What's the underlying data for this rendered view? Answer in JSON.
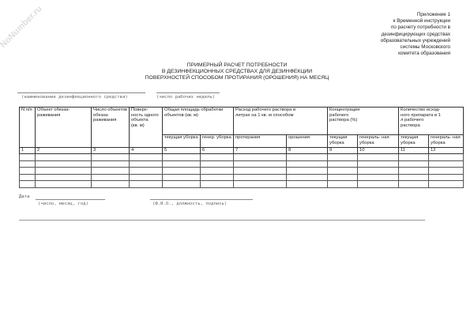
{
  "watermark": "NoNumber.ru",
  "appendix": [
    "Приложение 1",
    "к Временной инструкции",
    "по расчету потребности в",
    "дезинфицирующих средствах",
    "образовательных учреждений",
    "системы Московского",
    "комитета образования"
  ],
  "title": [
    "ПРИМЕРНЫЙ РАСЧЕТ ПОТРЕБНОСТИ",
    "В ДЕЗИНФЕКЦИОННЫХ СРЕДСТВАХ ДЛЯ ДЕЗИНФЕКЦИИ",
    "ПОВЕРХНОСТЕЙ СПОСОБОМ ПРОТИРАНИЯ (ОРОШЕНИЯ) НА МЕСЯЦ"
  ],
  "fields": {
    "agent": "(наименование дезинфекционного средства)",
    "weeks": "(число рабочих недель)"
  },
  "table": {
    "h": [
      "N п/п",
      "Объект обезза- раживания",
      "Число объектов обезза- раживания",
      "Поверх- ность одного объекта",
      "Общая площадь обработки объектов (кв. м)",
      "Расход рабочего раствора в литрах на 1 кв. м способом",
      "Концентрация рабочего раствора (%)",
      "Количество исход- ного препарата в 1 л рабочего раствора"
    ],
    "h4unit": "(кв. м)",
    "sub": [
      "текущая уборка",
      "генер. уборка",
      "протирания",
      "орошения",
      "текущая уборка",
      "генераль- ная уборка",
      "текущая уборка",
      "генераль- ная уборка"
    ],
    "nums": [
      "1",
      "2",
      "3",
      "4",
      "5",
      "6",
      "7",
      "8",
      "9",
      "10",
      "11",
      "12"
    ]
  },
  "footer": {
    "date_label": "Дата",
    "date_hint": "(число, месяц, год)",
    "sign_hint": "(Ф.И.О., должность, подпись)"
  }
}
